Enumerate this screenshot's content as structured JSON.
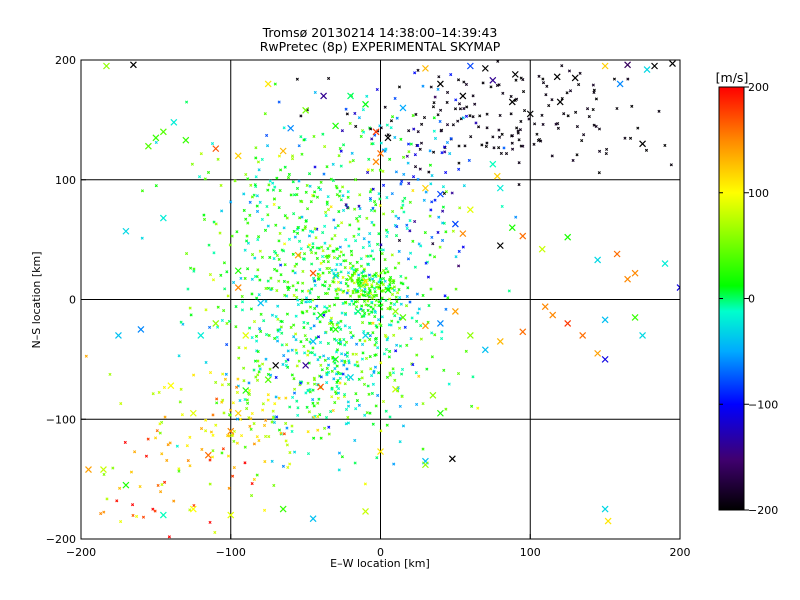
{
  "chart_data": {
    "type": "scatter",
    "title": "Tromsø 20130214 14:38:00–14:39:43",
    "subtitle": "RwPretec (8p) EXPERIMENTAL SKYMAP",
    "xlabel": "E–W location [km]",
    "ylabel": "N–S location [km]",
    "xlim": [
      -200,
      200
    ],
    "ylim": [
      -200,
      200
    ],
    "xticks": [
      -200,
      -100,
      0,
      100,
      200
    ],
    "yticks": [
      -200,
      -100,
      0,
      100,
      200
    ],
    "xtick_labels": [
      "−200",
      "−100",
      "0",
      "100",
      "200"
    ],
    "ytick_labels": [
      "−200",
      "−100",
      "0",
      "100",
      "200"
    ],
    "grid": true,
    "colorbar": {
      "label": "[m/s]",
      "range": [
        -200,
        200
      ],
      "ticks": [
        200,
        100,
        0,
        -100,
        -200
      ],
      "tick_labels": [
        "200",
        "100",
        "0",
        "−100",
        "−200"
      ]
    },
    "series": [
      {
        "marker": "x",
        "points": [
          [
            -183,
            195,
            60
          ],
          [
            -165,
            196,
            -200
          ],
          [
            -155,
            128,
            40
          ],
          [
            -150,
            135,
            30
          ],
          [
            -145,
            140,
            40
          ],
          [
            -138,
            148,
            -20
          ],
          [
            -130,
            133,
            30
          ],
          [
            -110,
            126,
            170
          ],
          [
            -95,
            120,
            120
          ],
          [
            -75,
            180,
            110
          ],
          [
            -65,
            124,
            130
          ],
          [
            -60,
            143,
            -60
          ],
          [
            -50,
            158,
            50
          ],
          [
            -38,
            170,
            -140
          ],
          [
            -30,
            145,
            20
          ],
          [
            -20,
            170,
            0
          ],
          [
            -10,
            163,
            10
          ],
          [
            -3,
            140,
            180
          ],
          [
            5,
            135,
            -200
          ],
          [
            0,
            122,
            160
          ],
          [
            -3,
            115,
            150
          ],
          [
            15,
            160,
            -50
          ],
          [
            30,
            193,
            130
          ],
          [
            40,
            180,
            -200
          ],
          [
            55,
            170,
            -200
          ],
          [
            60,
            195,
            -80
          ],
          [
            70,
            193,
            -200
          ],
          [
            75,
            183,
            -140
          ],
          [
            90,
            188,
            -200
          ],
          [
            88,
            165,
            -200
          ],
          [
            100,
            155,
            -200
          ],
          [
            118,
            186,
            -200
          ],
          [
            130,
            185,
            -200
          ],
          [
            120,
            165,
            -200
          ],
          [
            165,
            196,
            -160
          ],
          [
            183,
            195,
            -200
          ],
          [
            195,
            197,
            -200
          ],
          [
            178,
            192,
            -30
          ],
          [
            160,
            180,
            -60
          ],
          [
            150,
            195,
            120
          ],
          [
            175,
            130,
            -200
          ],
          [
            -170,
            57,
            -30
          ],
          [
            -145,
            68,
            -20
          ],
          [
            -95,
            24,
            20
          ],
          [
            -55,
            37,
            140
          ],
          [
            -45,
            22,
            170
          ],
          [
            -30,
            20,
            -30
          ],
          [
            -20,
            18,
            50
          ],
          [
            -10,
            15,
            110
          ],
          [
            5,
            8,
            10
          ],
          [
            80,
            93,
            -20
          ],
          [
            60,
            75,
            90
          ],
          [
            55,
            55,
            150
          ],
          [
            80,
            45,
            -200
          ],
          [
            95,
            53,
            160
          ],
          [
            88,
            60,
            20
          ],
          [
            50,
            63,
            -80
          ],
          [
            40,
            88,
            -80
          ],
          [
            30,
            93,
            120
          ],
          [
            78,
            103,
            120
          ],
          [
            75,
            113,
            -10
          ],
          [
            108,
            42,
            80
          ],
          [
            125,
            52,
            20
          ],
          [
            158,
            38,
            160
          ],
          [
            165,
            17,
            150
          ],
          [
            170,
            22,
            150
          ],
          [
            190,
            30,
            -20
          ],
          [
            145,
            33,
            -30
          ],
          [
            200,
            10,
            -110
          ],
          [
            -120,
            -30,
            -20
          ],
          [
            -160,
            -25,
            -60
          ],
          [
            -175,
            -30,
            -40
          ],
          [
            -95,
            10,
            150
          ],
          [
            -90,
            -30,
            90
          ],
          [
            -110,
            -20,
            60
          ],
          [
            -80,
            -3,
            -40
          ],
          [
            -40,
            -13,
            10
          ],
          [
            -45,
            -35,
            -40
          ],
          [
            -30,
            -25,
            20
          ],
          [
            -15,
            -10,
            0
          ],
          [
            -10,
            -30,
            -30
          ],
          [
            10,
            -10,
            60
          ],
          [
            15,
            -15,
            40
          ],
          [
            30,
            -22,
            140
          ],
          [
            40,
            -20,
            -60
          ],
          [
            50,
            -10,
            140
          ],
          [
            60,
            -30,
            60
          ],
          [
            70,
            -42,
            -40
          ],
          [
            80,
            -35,
            130
          ],
          [
            95,
            -27,
            160
          ],
          [
            110,
            -6,
            150
          ],
          [
            115,
            -13,
            150
          ],
          [
            125,
            -20,
            180
          ],
          [
            135,
            -30,
            160
          ],
          [
            145,
            -45,
            140
          ],
          [
            150,
            -50,
            -110
          ],
          [
            150,
            -17,
            -40
          ],
          [
            170,
            -15,
            30
          ],
          [
            175,
            -30,
            -30
          ],
          [
            -140,
            -72,
            100
          ],
          [
            -90,
            -76,
            20
          ],
          [
            -75,
            -67,
            40
          ],
          [
            -70,
            -55,
            -200
          ],
          [
            -50,
            -55,
            -140
          ],
          [
            -40,
            -73,
            170
          ],
          [
            -30,
            -50,
            20
          ],
          [
            -20,
            -65,
            -30
          ],
          [
            10,
            -75,
            80
          ],
          [
            35,
            -80,
            60
          ],
          [
            40,
            -95,
            20
          ],
          [
            30,
            -135,
            -40
          ],
          [
            48,
            -133,
            -200
          ],
          [
            -125,
            -95,
            90
          ],
          [
            -95,
            -95,
            120
          ],
          [
            -100,
            -110,
            150
          ],
          [
            -115,
            -130,
            160
          ],
          [
            -195,
            -142,
            140
          ],
          [
            -185,
            -142,
            80
          ],
          [
            -170,
            -155,
            20
          ],
          [
            -145,
            -180,
            -10
          ],
          [
            -125,
            -175,
            100
          ],
          [
            -100,
            -180,
            90
          ],
          [
            -65,
            -175,
            30
          ],
          [
            -45,
            -183,
            -40
          ],
          [
            -10,
            -177,
            80
          ],
          [
            0,
            -127,
            110
          ],
          [
            30,
            -138,
            60
          ],
          [
            150,
            -175,
            -30
          ],
          [
            152,
            -185,
            110
          ]
        ]
      },
      {
        "marker": "dot",
        "points": []
      }
    ]
  }
}
